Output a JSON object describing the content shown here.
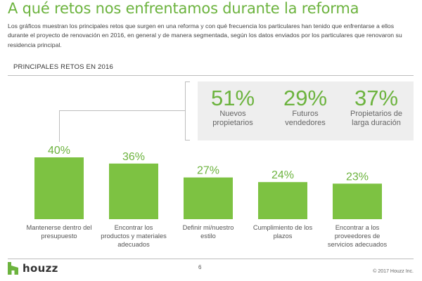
{
  "page": {
    "title": "A qué retos nos enfrentamos durante la reforma",
    "intro": "Los gráficos muestran los principales retos que surgen en una reforma y con qué frecuencia los particulares han tenido que enfrentarse a ellos durante el proyecto de renovación en 2016, en general y de manera segmentada, según los datos enviados por los particulares que renovaron su residencia principal.",
    "section_label": "PRINCIPALES RETOS EN 2016"
  },
  "segments": [
    {
      "percent": "51%",
      "label_line1": "Nuevos",
      "label_line2": "propietarios"
    },
    {
      "percent": "29%",
      "label_line1": "Futuros",
      "label_line2": "vendedores"
    },
    {
      "percent": "37%",
      "label_line1": "Propietarios de",
      "label_line2": "larga duración"
    }
  ],
  "chart_data": {
    "type": "bar",
    "title": "PRINCIPALES RETOS EN 2016",
    "categories": [
      "Mantenerse dentro del presupuesto",
      "Encontrar los productos y materiales adecuados",
      "Definir mi/nuestro estilo",
      "Cumplimiento de los plazos",
      "Encontrar a los proveedores de servicios adecuados"
    ],
    "category_lines": [
      [
        "Mantenerse dentro del",
        "presupuesto"
      ],
      [
        "Encontrar los",
        "productos y materiales",
        "adecuados"
      ],
      [
        "Definir mi/nuestro",
        "estilo"
      ],
      [
        "Cumplimiento de los",
        "plazos"
      ],
      [
        "Encontrar a los",
        "proveedores de",
        "servicios adecuados"
      ]
    ],
    "values": [
      40,
      36,
      27,
      24,
      23
    ],
    "value_labels": [
      "40%",
      "36%",
      "27%",
      "24%",
      "23%"
    ],
    "unit": "%",
    "ylim": [
      0,
      40
    ],
    "grid": false,
    "legend": "none",
    "colors": {
      "bar": "#7dc242",
      "value_text": "#6cb33e"
    }
  },
  "footer": {
    "logo_text": "houzz",
    "page_number": "6",
    "copyright": "© 2017 Houzz Inc."
  },
  "colors": {
    "accent": "#6cb33e",
    "box_bg": "#eeeeee",
    "rule": "#bdbdbd"
  }
}
